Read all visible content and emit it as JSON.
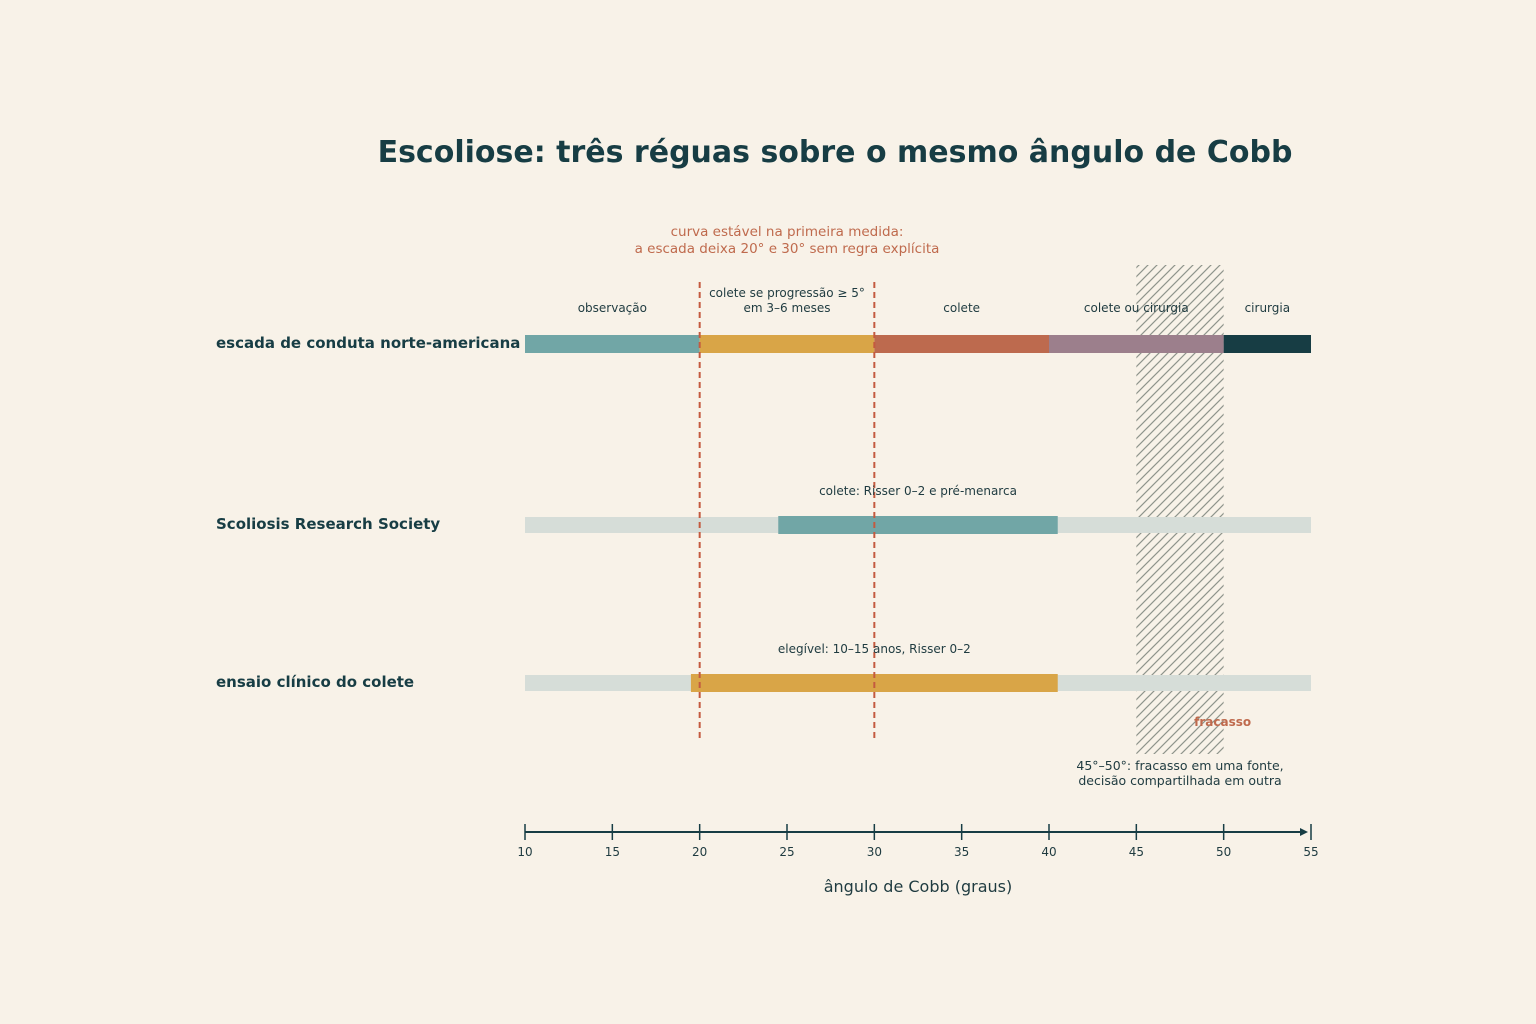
{
  "chart_data": {
    "type": "bar",
    "title": "Escoliose: três réguas sobre o mesmo ângulo de Cobb",
    "xlabel": "ângulo de Cobb (graus)",
    "xlim": [
      10,
      55
    ],
    "xticks": [
      10,
      15,
      20,
      25,
      30,
      35,
      40,
      45,
      50,
      55
    ],
    "colors": {
      "teal": "#71a6a6",
      "amber": "#d9a547",
      "rust": "#bd6a4e",
      "mauve": "#9c7f8c",
      "navy": "#173d44",
      "track": "#d6ddd8",
      "reference": "#c45a3f"
    },
    "rows": [
      {
        "label": "escada de conduta norte-americana",
        "segments": [
          {
            "start": 10,
            "end": 20,
            "label": "observação",
            "color": "#71a6a6"
          },
          {
            "start": 20,
            "end": 30,
            "label": "colete se progressão ≥ 5°\nem 3–6 meses",
            "color": "#d9a547"
          },
          {
            "start": 30,
            "end": 40,
            "label": "colete",
            "color": "#bd6a4e"
          },
          {
            "start": 40,
            "end": 50,
            "label": "colete ou cirurgia",
            "color": "#9c7f8c"
          },
          {
            "start": 50,
            "end": 55,
            "label": "cirurgia",
            "color": "#173d44"
          }
        ]
      },
      {
        "label": "Scoliosis Research Society",
        "segments": [
          {
            "start": 24.5,
            "end": 40.5,
            "label": "colete: Risser 0–2 e pré-menarca",
            "color": "#71a6a6"
          }
        ]
      },
      {
        "label": "ensaio clínico do colete",
        "segments": [
          {
            "start": 19.5,
            "end": 40.5,
            "label": "elegível: 10–15 anos, Risser 0–2",
            "color": "#d9a547"
          }
        ]
      }
    ],
    "reference_lines": [
      20,
      30
    ],
    "reference_note": "curva estável na primeira medida:\na escada deixa 20° e 30° sem regra explícita",
    "hatched_band": {
      "start": 45,
      "end": 50,
      "label": "fracasso",
      "note": "45°–50°: fracasso em uma fonte,\ndecisão compartilhada em outra"
    }
  }
}
